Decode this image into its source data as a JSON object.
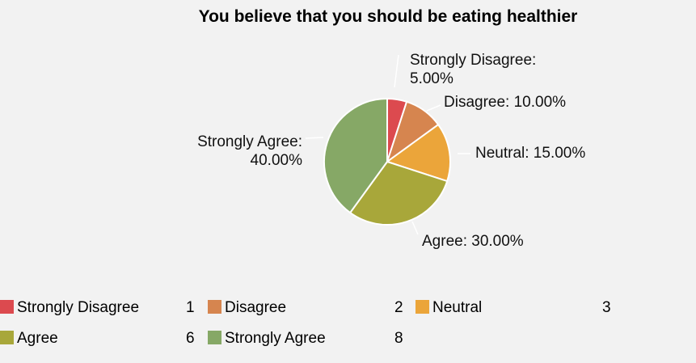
{
  "chart_data": {
    "type": "pie",
    "title": "You believe that you should be eating healthier",
    "categories": [
      "Strongly Disagree",
      "Disagree",
      "Neutral",
      "Agree",
      "Strongly Agree"
    ],
    "values": [
      1,
      2,
      3,
      6,
      8
    ],
    "percent_labels": [
      "Strongly Disagree: 5.00%",
      "Disagree: 10.00%",
      "Neutral: 15.00%",
      "Agree: 30.00%",
      "Strongly Agree: 40.00%"
    ],
    "colors": [
      "#dc4a4f",
      "#d6854f",
      "#eba53a",
      "#a8a73a",
      "#86a866"
    ],
    "legend": "bottom"
  }
}
